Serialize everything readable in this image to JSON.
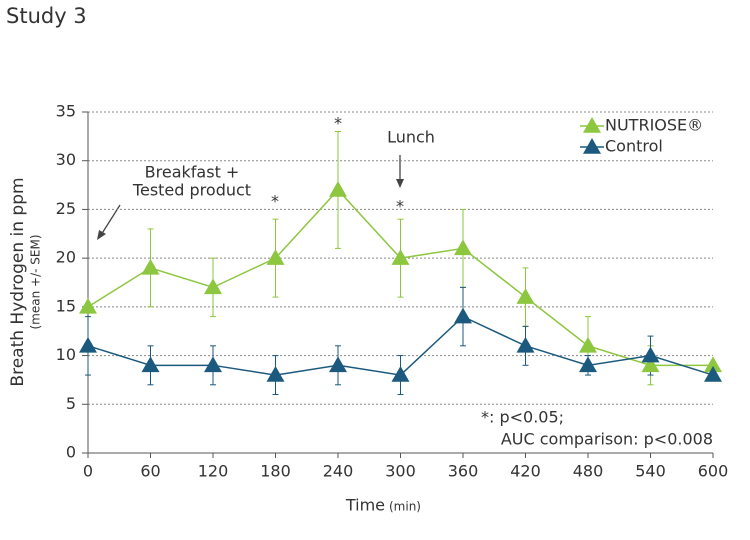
{
  "chart_data": {
    "type": "line",
    "title": "Study 3",
    "x_label": "Time",
    "x_unit": "(min)",
    "y_label": "Breath Hydrogen in ppm",
    "y_sublabel": "(mean +/- SEM)",
    "x": [
      0,
      60,
      120,
      180,
      240,
      300,
      360,
      420,
      480,
      540,
      600
    ],
    "xlim": [
      0,
      600
    ],
    "xticks": [
      0,
      60,
      120,
      180,
      240,
      300,
      360,
      420,
      480,
      540,
      600
    ],
    "ylim": [
      0,
      35
    ],
    "yticks": [
      0,
      5,
      10,
      15,
      20,
      25,
      30,
      35
    ],
    "grid": true,
    "legend": "upper right",
    "series": [
      {
        "name": "NUTRIOSE®",
        "color": "#8dc63f",
        "values": [
          15,
          19,
          17,
          20,
          27,
          20,
          21,
          16,
          11,
          9,
          9
        ],
        "errors": [
          0,
          4,
          3,
          4,
          6,
          4,
          4,
          3,
          3,
          2,
          0
        ]
      },
      {
        "name": "Control",
        "color": "#1b5a7e",
        "values": [
          11,
          9,
          9,
          8,
          9,
          8,
          14,
          11,
          9,
          10,
          8
        ],
        "errors": [
          3,
          2,
          2,
          2,
          2,
          2,
          3,
          2,
          1,
          2,
          0
        ]
      }
    ],
    "annotations": [
      "*",
      "*",
      "*",
      "Breakfast +",
      "Tested product",
      "Lunch",
      "*: p<0.05;",
      "AUC comparison: p<0.008"
    ]
  }
}
